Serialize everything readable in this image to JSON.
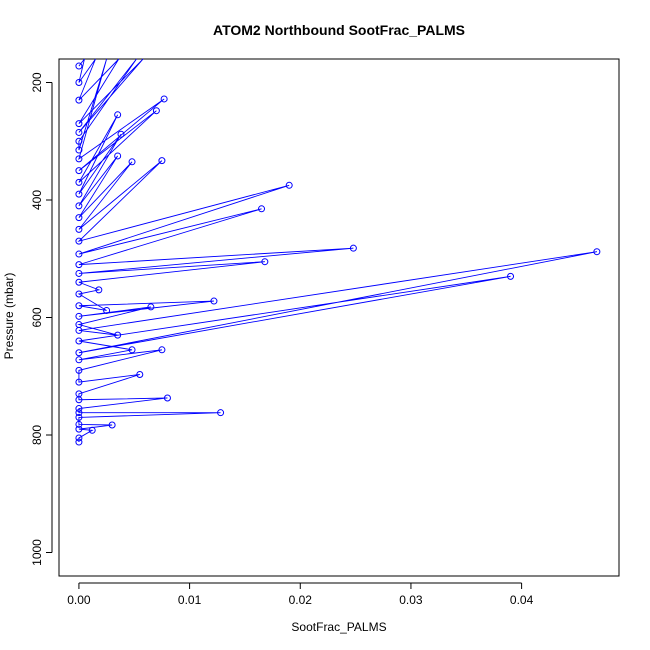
{
  "chart_data": {
    "type": "scatter",
    "title": "ATOM2 Northbound SootFrac_PALMS",
    "xlabel": "SootFrac_PALMS",
    "ylabel": "Pressure (mbar)",
    "xlim": [
      -0.0018,
      0.0488
    ],
    "ylim": [
      1040,
      160
    ],
    "y_reversed": true,
    "xticks": [
      0,
      0.01,
      0.02,
      0.03,
      0.04
    ],
    "xtick_labels": [
      "0.00",
      "0.01",
      "0.02",
      "0.03",
      "0.04"
    ],
    "yticks": [
      200,
      400,
      600,
      800,
      1000
    ],
    "ytick_labels": [
      "200",
      "400",
      "600",
      "800",
      "1000"
    ],
    "grid": false,
    "legend": "none",
    "series_color": "#0000ff",
    "connected": true,
    "points": [
      [
        0,
        812
      ],
      [
        0,
        805
      ],
      [
        0.0012,
        792
      ],
      [
        0,
        790
      ],
      [
        0.003,
        783
      ],
      [
        0,
        782
      ],
      [
        0,
        770
      ],
      [
        0.0128,
        762
      ],
      [
        0,
        762
      ],
      [
        0,
        755
      ],
      [
        0.008,
        737
      ],
      [
        0,
        740
      ],
      [
        0,
        730
      ],
      [
        0.0055,
        697
      ],
      [
        0,
        710
      ],
      [
        0,
        690
      ],
      [
        0.0075,
        655
      ],
      [
        0,
        672
      ],
      [
        0.0048,
        655
      ],
      [
        0,
        640
      ],
      [
        0.039,
        530
      ],
      [
        0,
        660
      ],
      [
        0.0468,
        488
      ],
      [
        0,
        622
      ],
      [
        0.0035,
        630
      ],
      [
        0,
        612
      ],
      [
        0.0065,
        582
      ],
      [
        0,
        598
      ],
      [
        0.0122,
        572
      ],
      [
        0,
        580
      ],
      [
        0.0025,
        588
      ],
      [
        0,
        560
      ],
      [
        0.0018,
        553
      ],
      [
        0,
        540
      ],
      [
        0.0168,
        505
      ],
      [
        0,
        525
      ],
      [
        0.0248,
        482
      ],
      [
        0,
        510
      ],
      [
        0.0165,
        415
      ],
      [
        0,
        492
      ],
      [
        0.019,
        375
      ],
      [
        0,
        470
      ],
      [
        0.0075,
        333
      ],
      [
        0,
        450
      ],
      [
        0.0048,
        335
      ],
      [
        0,
        430
      ],
      [
        0.0035,
        325
      ],
      [
        0,
        410
      ],
      [
        0.0038,
        288
      ],
      [
        0,
        390
      ],
      [
        0.0035,
        255
      ],
      [
        0,
        370
      ],
      [
        0.007,
        248
      ],
      [
        0,
        350
      ],
      [
        0.0077,
        228
      ],
      [
        0,
        330
      ],
      [
        0.0025,
        160
      ],
      [
        0,
        315
      ],
      [
        0,
        300
      ],
      [
        0.0052,
        160
      ],
      [
        0,
        285
      ],
      [
        0.0058,
        160
      ],
      [
        0,
        270
      ],
      [
        0.0036,
        160
      ],
      [
        0,
        230
      ],
      [
        0.0015,
        160
      ],
      [
        0,
        200
      ],
      [
        0.0005,
        160
      ],
      [
        0,
        172
      ]
    ]
  }
}
